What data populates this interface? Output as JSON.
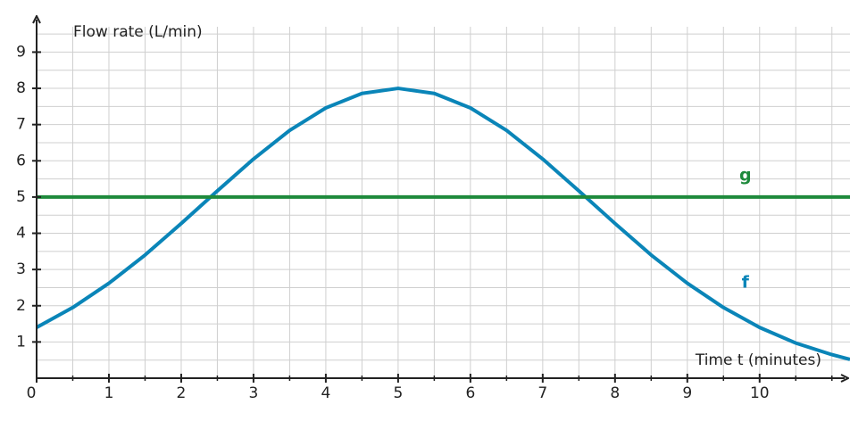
{
  "chart_data": {
    "type": "line",
    "y_label": "Flow rate (L/min)",
    "x_label": "Time t (minutes)",
    "xlim": [
      0,
      11.25
    ],
    "ylim": [
      0,
      9.7
    ],
    "xticks": [
      0,
      1,
      2,
      3,
      4,
      5,
      6,
      7,
      8,
      9,
      10
    ],
    "yticks": [
      1,
      2,
      3,
      4,
      5,
      6,
      7,
      8,
      9
    ],
    "x_minor_ticks": [
      0.5,
      1.5,
      2.5,
      3.5,
      4.5,
      5.5,
      6.5,
      7.5,
      8.5,
      9.5,
      10.5,
      11
    ],
    "y_minor_ticks": [
      0.5,
      1.5,
      2.5,
      3.5,
      4.5,
      5.5,
      6.5,
      7.5,
      8.5,
      9.5
    ],
    "grid": true,
    "series": [
      {
        "name": "f",
        "color": "#0a85b8",
        "x": [
          0,
          0.5,
          1,
          1.5,
          2,
          2.5,
          3,
          3.5,
          4,
          4.5,
          5,
          5.5,
          6,
          6.5,
          7,
          7.5,
          8,
          8.5,
          9,
          9.5,
          10,
          10.5,
          11,
          11.25
        ],
        "values": [
          1.4,
          1.95,
          2.62,
          3.4,
          4.27,
          5.17,
          6.05,
          6.84,
          7.46,
          7.86,
          8,
          7.86,
          7.46,
          6.84,
          6.05,
          5.17,
          4.27,
          3.4,
          2.62,
          1.95,
          1.4,
          0.97,
          0.65,
          0.52
        ]
      },
      {
        "name": "g",
        "color": "#1e8a3c",
        "x": [
          0,
          11.25
        ],
        "values": [
          5,
          5
        ]
      }
    ]
  }
}
